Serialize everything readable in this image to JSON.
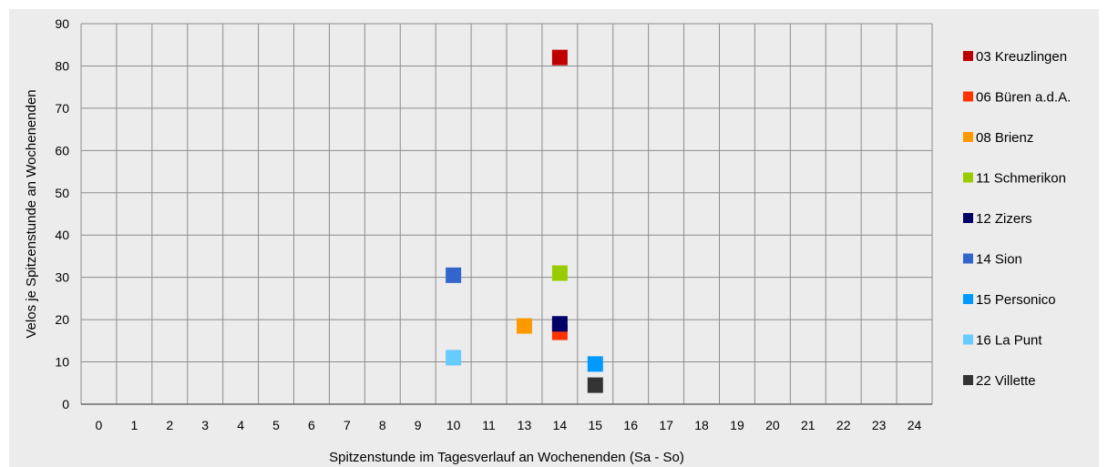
{
  "chart_data": {
    "type": "scatter",
    "title": "",
    "xlabel": "Spitzenstunde im Tagesverlauf an Wochenenden (Sa - So)",
    "ylabel": "Velos je Spitzenstunde an Wochenenden",
    "x_categories": [
      "0",
      "1",
      "2",
      "3",
      "4",
      "5",
      "6",
      "7",
      "8",
      "9",
      "10",
      "11",
      "13",
      "14",
      "15",
      "16",
      "17",
      "18",
      "19",
      "20",
      "21",
      "22",
      "23",
      "24"
    ],
    "y_ticks": [
      "0",
      "10",
      "20",
      "30",
      "40",
      "50",
      "60",
      "70",
      "80",
      "90"
    ],
    "ylim": [
      0,
      90
    ],
    "grid": true,
    "legend_position": "right",
    "series": [
      {
        "name": "03 Kreuzlingen",
        "color": "#c00000",
        "x": "14",
        "y": 82
      },
      {
        "name": "06 Büren a.d.A.",
        "color": "#ff3300",
        "x": "14",
        "y": 17
      },
      {
        "name": "08 Brienz",
        "color": "#ff9900",
        "x": "13",
        "y": 18.5
      },
      {
        "name": "11 Schmerikon",
        "color": "#99cc00",
        "x": "14",
        "y": 31
      },
      {
        "name": "12 Zizers",
        "color": "#000066",
        "x": "14",
        "y": 19
      },
      {
        "name": "14 Sion",
        "color": "#3366cc",
        "x": "10",
        "y": 30.5
      },
      {
        "name": "15 Personico",
        "color": "#0099ff",
        "x": "15",
        "y": 9.5
      },
      {
        "name": "16 La Punt",
        "color": "#66ccff",
        "x": "10",
        "y": 11
      },
      {
        "name": "22 Villette",
        "color": "#333333",
        "x": "15",
        "y": 4.5
      }
    ]
  }
}
